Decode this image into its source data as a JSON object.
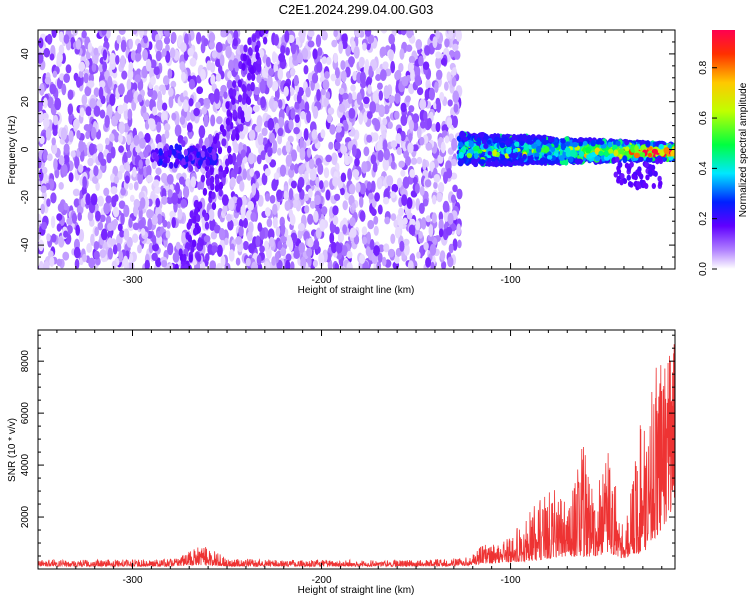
{
  "title": "C2E1.2024.299.04.00.G03",
  "chart_data": [
    {
      "type": "heatmap",
      "xlabel": "Height of straight line (km)",
      "ylabel": "Frequency (Hz)",
      "xlim": [
        -350,
        -13
      ],
      "ylim": [
        -50,
        50
      ],
      "xticks": [
        -300,
        -200,
        -100
      ],
      "yticks": [
        -40,
        -20,
        0,
        20,
        40
      ],
      "colorbar": {
        "label": "Normalized spectral amplitude",
        "range": [
          0.0,
          0.95
        ],
        "ticks": [
          "0.0",
          "0.2",
          "0.4",
          "0.6",
          "0.8"
        ]
      },
      "regions": [
        {
          "x_range": [
            -350,
            -127
          ],
          "freq_range": [
            -50,
            50
          ],
          "amplitude_range": [
            0.02,
            0.15
          ],
          "pattern": "scattered noise"
        },
        {
          "x_range": [
            -290,
            -255
          ],
          "freq_center": -3,
          "amplitude_max": 0.25,
          "pattern": "weak signal cluster"
        },
        {
          "x_range": [
            -127,
            -13
          ],
          "freq_center_start": 0,
          "freq_center_end": -1,
          "half_width_hz": 6,
          "amplitude_range": [
            0.2,
            0.95
          ],
          "pattern": "carrier signal band"
        }
      ]
    },
    {
      "type": "line",
      "xlabel": "Height of straight line (km)",
      "ylabel": "SNR (10 * v/v)",
      "xlim": [
        -350,
        -13
      ],
      "ylim": [
        0,
        9200
      ],
      "xticks": [
        -300,
        -200,
        -100
      ],
      "yticks": [
        2000,
        4000,
        6000,
        8000
      ],
      "color": "#ee3333",
      "profile_x": [
        -350,
        -280,
        -262,
        -250,
        -200,
        -150,
        -125,
        -115,
        -100,
        -90,
        -80,
        -70,
        -62,
        -55,
        -48,
        -40,
        -30,
        -20,
        -13
      ],
      "profile_min": [
        100,
        100,
        150,
        100,
        100,
        100,
        120,
        200,
        250,
        300,
        400,
        500,
        450,
        500,
        600,
        400,
        600,
        1500,
        2500
      ],
      "profile_max": [
        350,
        380,
        950,
        400,
        350,
        350,
        420,
        900,
        1300,
        2200,
        3300,
        2500,
        4900,
        3000,
        4700,
        1500,
        6500,
        8600,
        9000
      ]
    }
  ]
}
